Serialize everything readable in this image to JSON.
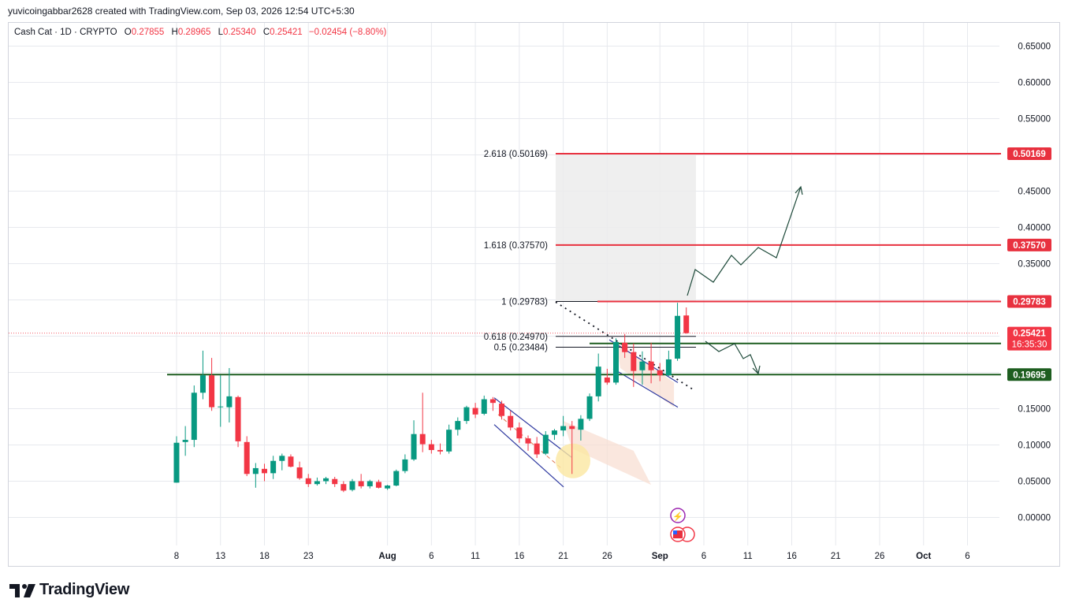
{
  "header": {
    "credit": "yuvicoingabbar2628 created with TradingView.com, Sep 03, 2026 12:54 UTC+5:30"
  },
  "legend": {
    "symbol": "Cash Cat · 1D · CRYPTO",
    "o_label": "O",
    "o_value": "0.27855",
    "h_label": "H",
    "h_value": "0.28965",
    "l_label": "L",
    "l_value": "0.25340",
    "c_label": "C",
    "c_value": "0.25421",
    "change": "−0.02454 (−8.80%)"
  },
  "brand": {
    "name": "TradingView"
  },
  "colors": {
    "up": "#089981",
    "down": "#f23645",
    "grid": "#e7e9ee",
    "support": "#1e5e20",
    "fib": "#e8313f",
    "channel": "#2f3aa0"
  },
  "chart_data": {
    "type": "candlestick",
    "title": "Cash Cat · 1D · CRYPTO",
    "xlabel": "",
    "ylabel": "",
    "ylim": [
      -0.04,
      0.66
    ],
    "y_ticks": [
      "0.65000",
      "0.60000",
      "0.55000",
      "0.50000",
      "0.45000",
      "0.40000",
      "0.35000",
      "0.30000",
      "0.25000",
      "0.20000",
      "0.15000",
      "0.10000",
      "0.05000",
      "0.00000"
    ],
    "x_ticks": [
      "8",
      "13",
      "18",
      "23",
      "Aug",
      "6",
      "11",
      "16",
      "21",
      "26",
      "Sep",
      "6",
      "11",
      "16",
      "21",
      "26",
      "Oct",
      "6"
    ],
    "candles": [
      {
        "date": "Jul 8",
        "o": 0.048,
        "h": 0.112,
        "l": 0.048,
        "c": 0.103
      },
      {
        "date": "Jul 9",
        "o": 0.104,
        "h": 0.126,
        "l": 0.085,
        "c": 0.107
      },
      {
        "date": "Jul 10",
        "o": 0.107,
        "h": 0.182,
        "l": 0.097,
        "c": 0.172
      },
      {
        "date": "Jul 11",
        "o": 0.172,
        "h": 0.23,
        "l": 0.163,
        "c": 0.196
      },
      {
        "date": "Jul 12",
        "o": 0.196,
        "h": 0.22,
        "l": 0.147,
        "c": 0.152
      },
      {
        "date": "Jul 13",
        "o": 0.152,
        "h": 0.196,
        "l": 0.125,
        "c": 0.153
      },
      {
        "date": "Jul 14",
        "o": 0.152,
        "h": 0.206,
        "l": 0.131,
        "c": 0.167
      },
      {
        "date": "Jul 15",
        "o": 0.166,
        "h": 0.168,
        "l": 0.097,
        "c": 0.105
      },
      {
        "date": "Jul 16",
        "o": 0.104,
        "h": 0.112,
        "l": 0.057,
        "c": 0.06
      },
      {
        "date": "Jul 17",
        "o": 0.06,
        "h": 0.075,
        "l": 0.041,
        "c": 0.068
      },
      {
        "date": "Jul 18",
        "o": 0.067,
        "h": 0.074,
        "l": 0.05,
        "c": 0.061
      },
      {
        "date": "Jul 19",
        "o": 0.061,
        "h": 0.085,
        "l": 0.053,
        "c": 0.078
      },
      {
        "date": "Jul 20",
        "o": 0.078,
        "h": 0.088,
        "l": 0.065,
        "c": 0.085
      },
      {
        "date": "Jul 21",
        "o": 0.084,
        "h": 0.087,
        "l": 0.069,
        "c": 0.07
      },
      {
        "date": "Jul 22",
        "o": 0.069,
        "h": 0.077,
        "l": 0.052,
        "c": 0.054
      },
      {
        "date": "Jul 23",
        "o": 0.054,
        "h": 0.06,
        "l": 0.042,
        "c": 0.046
      },
      {
        "date": "Jul 24",
        "o": 0.046,
        "h": 0.055,
        "l": 0.044,
        "c": 0.05
      },
      {
        "date": "Jul 25",
        "o": 0.05,
        "h": 0.056,
        "l": 0.046,
        "c": 0.054
      },
      {
        "date": "Jul 26",
        "o": 0.053,
        "h": 0.056,
        "l": 0.042,
        "c": 0.046
      },
      {
        "date": "Jul 27",
        "o": 0.046,
        "h": 0.05,
        "l": 0.035,
        "c": 0.037
      },
      {
        "date": "Jul 28",
        "o": 0.038,
        "h": 0.053,
        "l": 0.036,
        "c": 0.05
      },
      {
        "date": "Jul 29",
        "o": 0.05,
        "h": 0.06,
        "l": 0.04,
        "c": 0.043
      },
      {
        "date": "Jul 30",
        "o": 0.043,
        "h": 0.052,
        "l": 0.04,
        "c": 0.05
      },
      {
        "date": "Jul 31",
        "o": 0.049,
        "h": 0.052,
        "l": 0.04,
        "c": 0.041
      },
      {
        "date": "Aug 1",
        "o": 0.04,
        "h": 0.045,
        "l": 0.038,
        "c": 0.044
      },
      {
        "date": "Aug 2",
        "o": 0.044,
        "h": 0.066,
        "l": 0.043,
        "c": 0.064
      },
      {
        "date": "Aug 3",
        "o": 0.064,
        "h": 0.087,
        "l": 0.061,
        "c": 0.08
      },
      {
        "date": "Aug 4",
        "o": 0.08,
        "h": 0.134,
        "l": 0.078,
        "c": 0.115
      },
      {
        "date": "Aug 5",
        "o": 0.115,
        "h": 0.172,
        "l": 0.09,
        "c": 0.101
      },
      {
        "date": "Aug 6",
        "o": 0.101,
        "h": 0.107,
        "l": 0.088,
        "c": 0.093
      },
      {
        "date": "Aug 7",
        "o": 0.093,
        "h": 0.102,
        "l": 0.087,
        "c": 0.091
      },
      {
        "date": "Aug 8",
        "o": 0.091,
        "h": 0.128,
        "l": 0.088,
        "c": 0.121
      },
      {
        "date": "Aug 9",
        "o": 0.121,
        "h": 0.138,
        "l": 0.113,
        "c": 0.133
      },
      {
        "date": "Aug 10",
        "o": 0.133,
        "h": 0.154,
        "l": 0.129,
        "c": 0.152
      },
      {
        "date": "Aug 11",
        "o": 0.151,
        "h": 0.158,
        "l": 0.137,
        "c": 0.142
      },
      {
        "date": "Aug 12",
        "o": 0.143,
        "h": 0.168,
        "l": 0.141,
        "c": 0.163
      },
      {
        "date": "Aug 13",
        "o": 0.163,
        "h": 0.166,
        "l": 0.147,
        "c": 0.158
      },
      {
        "date": "Aug 14",
        "o": 0.157,
        "h": 0.161,
        "l": 0.135,
        "c": 0.14
      },
      {
        "date": "Aug 15",
        "o": 0.14,
        "h": 0.147,
        "l": 0.12,
        "c": 0.124
      },
      {
        "date": "Aug 16",
        "o": 0.124,
        "h": 0.131,
        "l": 0.103,
        "c": 0.109
      },
      {
        "date": "Aug 17",
        "o": 0.109,
        "h": 0.113,
        "l": 0.092,
        "c": 0.102
      },
      {
        "date": "Aug 18",
        "o": 0.102,
        "h": 0.111,
        "l": 0.082,
        "c": 0.087
      },
      {
        "date": "Aug 19",
        "o": 0.088,
        "h": 0.119,
        "l": 0.086,
        "c": 0.114
      },
      {
        "date": "Aug 20",
        "o": 0.114,
        "h": 0.122,
        "l": 0.107,
        "c": 0.12
      },
      {
        "date": "Aug 21",
        "o": 0.12,
        "h": 0.14,
        "l": 0.112,
        "c": 0.126
      },
      {
        "date": "Aug 22",
        "o": 0.126,
        "h": 0.133,
        "l": 0.06,
        "c": 0.122
      },
      {
        "date": "Aug 23",
        "o": 0.121,
        "h": 0.141,
        "l": 0.106,
        "c": 0.136
      },
      {
        "date": "Aug 24",
        "o": 0.136,
        "h": 0.171,
        "l": 0.133,
        "c": 0.167
      },
      {
        "date": "Aug 25",
        "o": 0.167,
        "h": 0.226,
        "l": 0.16,
        "c": 0.208
      },
      {
        "date": "Aug 26",
        "o": 0.193,
        "h": 0.205,
        "l": 0.183,
        "c": 0.186
      },
      {
        "date": "Aug 27",
        "o": 0.186,
        "h": 0.247,
        "l": 0.183,
        "c": 0.242
      },
      {
        "date": "Aug 28",
        "o": 0.241,
        "h": 0.253,
        "l": 0.22,
        "c": 0.228
      },
      {
        "date": "Aug 29",
        "o": 0.228,
        "h": 0.24,
        "l": 0.18,
        "c": 0.202
      },
      {
        "date": "Aug 30",
        "o": 0.203,
        "h": 0.229,
        "l": 0.183,
        "c": 0.215
      },
      {
        "date": "Aug 31",
        "o": 0.215,
        "h": 0.241,
        "l": 0.185,
        "c": 0.203
      },
      {
        "date": "Sep 1",
        "o": 0.203,
        "h": 0.213,
        "l": 0.188,
        "c": 0.196
      },
      {
        "date": "Sep 2",
        "o": 0.196,
        "h": 0.23,
        "l": 0.195,
        "c": 0.218
      },
      {
        "date": "Sep 3",
        "o": 0.219,
        "h": 0.296,
        "l": 0.216,
        "c": 0.278
      },
      {
        "date": "Sep 4",
        "o": 0.27855,
        "h": 0.28965,
        "l": 0.2534,
        "c": 0.25421
      }
    ],
    "horizontal_levels": [
      {
        "name": "support",
        "value": 0.19695,
        "label": "0.19695",
        "color": "#1e5e20"
      },
      {
        "name": "retest",
        "value": 0.23999,
        "label": "0.23999",
        "color": "#1e5e20"
      },
      {
        "name": "fib-1",
        "value": 0.29783,
        "label": "0.29783",
        "color": "#e8313f"
      },
      {
        "name": "fib-1618",
        "value": 0.3757,
        "label": "0.37570",
        "color": "#e8313f"
      },
      {
        "name": "fib-2618",
        "value": 0.50169,
        "label": "0.50169",
        "color": "#e8313f"
      }
    ],
    "fib_labels": [
      "2.618 (0.50169)",
      "1.618 (0.37570)",
      "1 (0.29783)",
      "0.618 (0.24970)",
      "0.5 (0.23484)"
    ],
    "fib_values": [
      0.50169,
      0.3757,
      0.29783,
      0.2497,
      0.23484
    ],
    "last_price": {
      "value": "0.25421",
      "countdown": "16:35:30"
    },
    "grid": true
  }
}
